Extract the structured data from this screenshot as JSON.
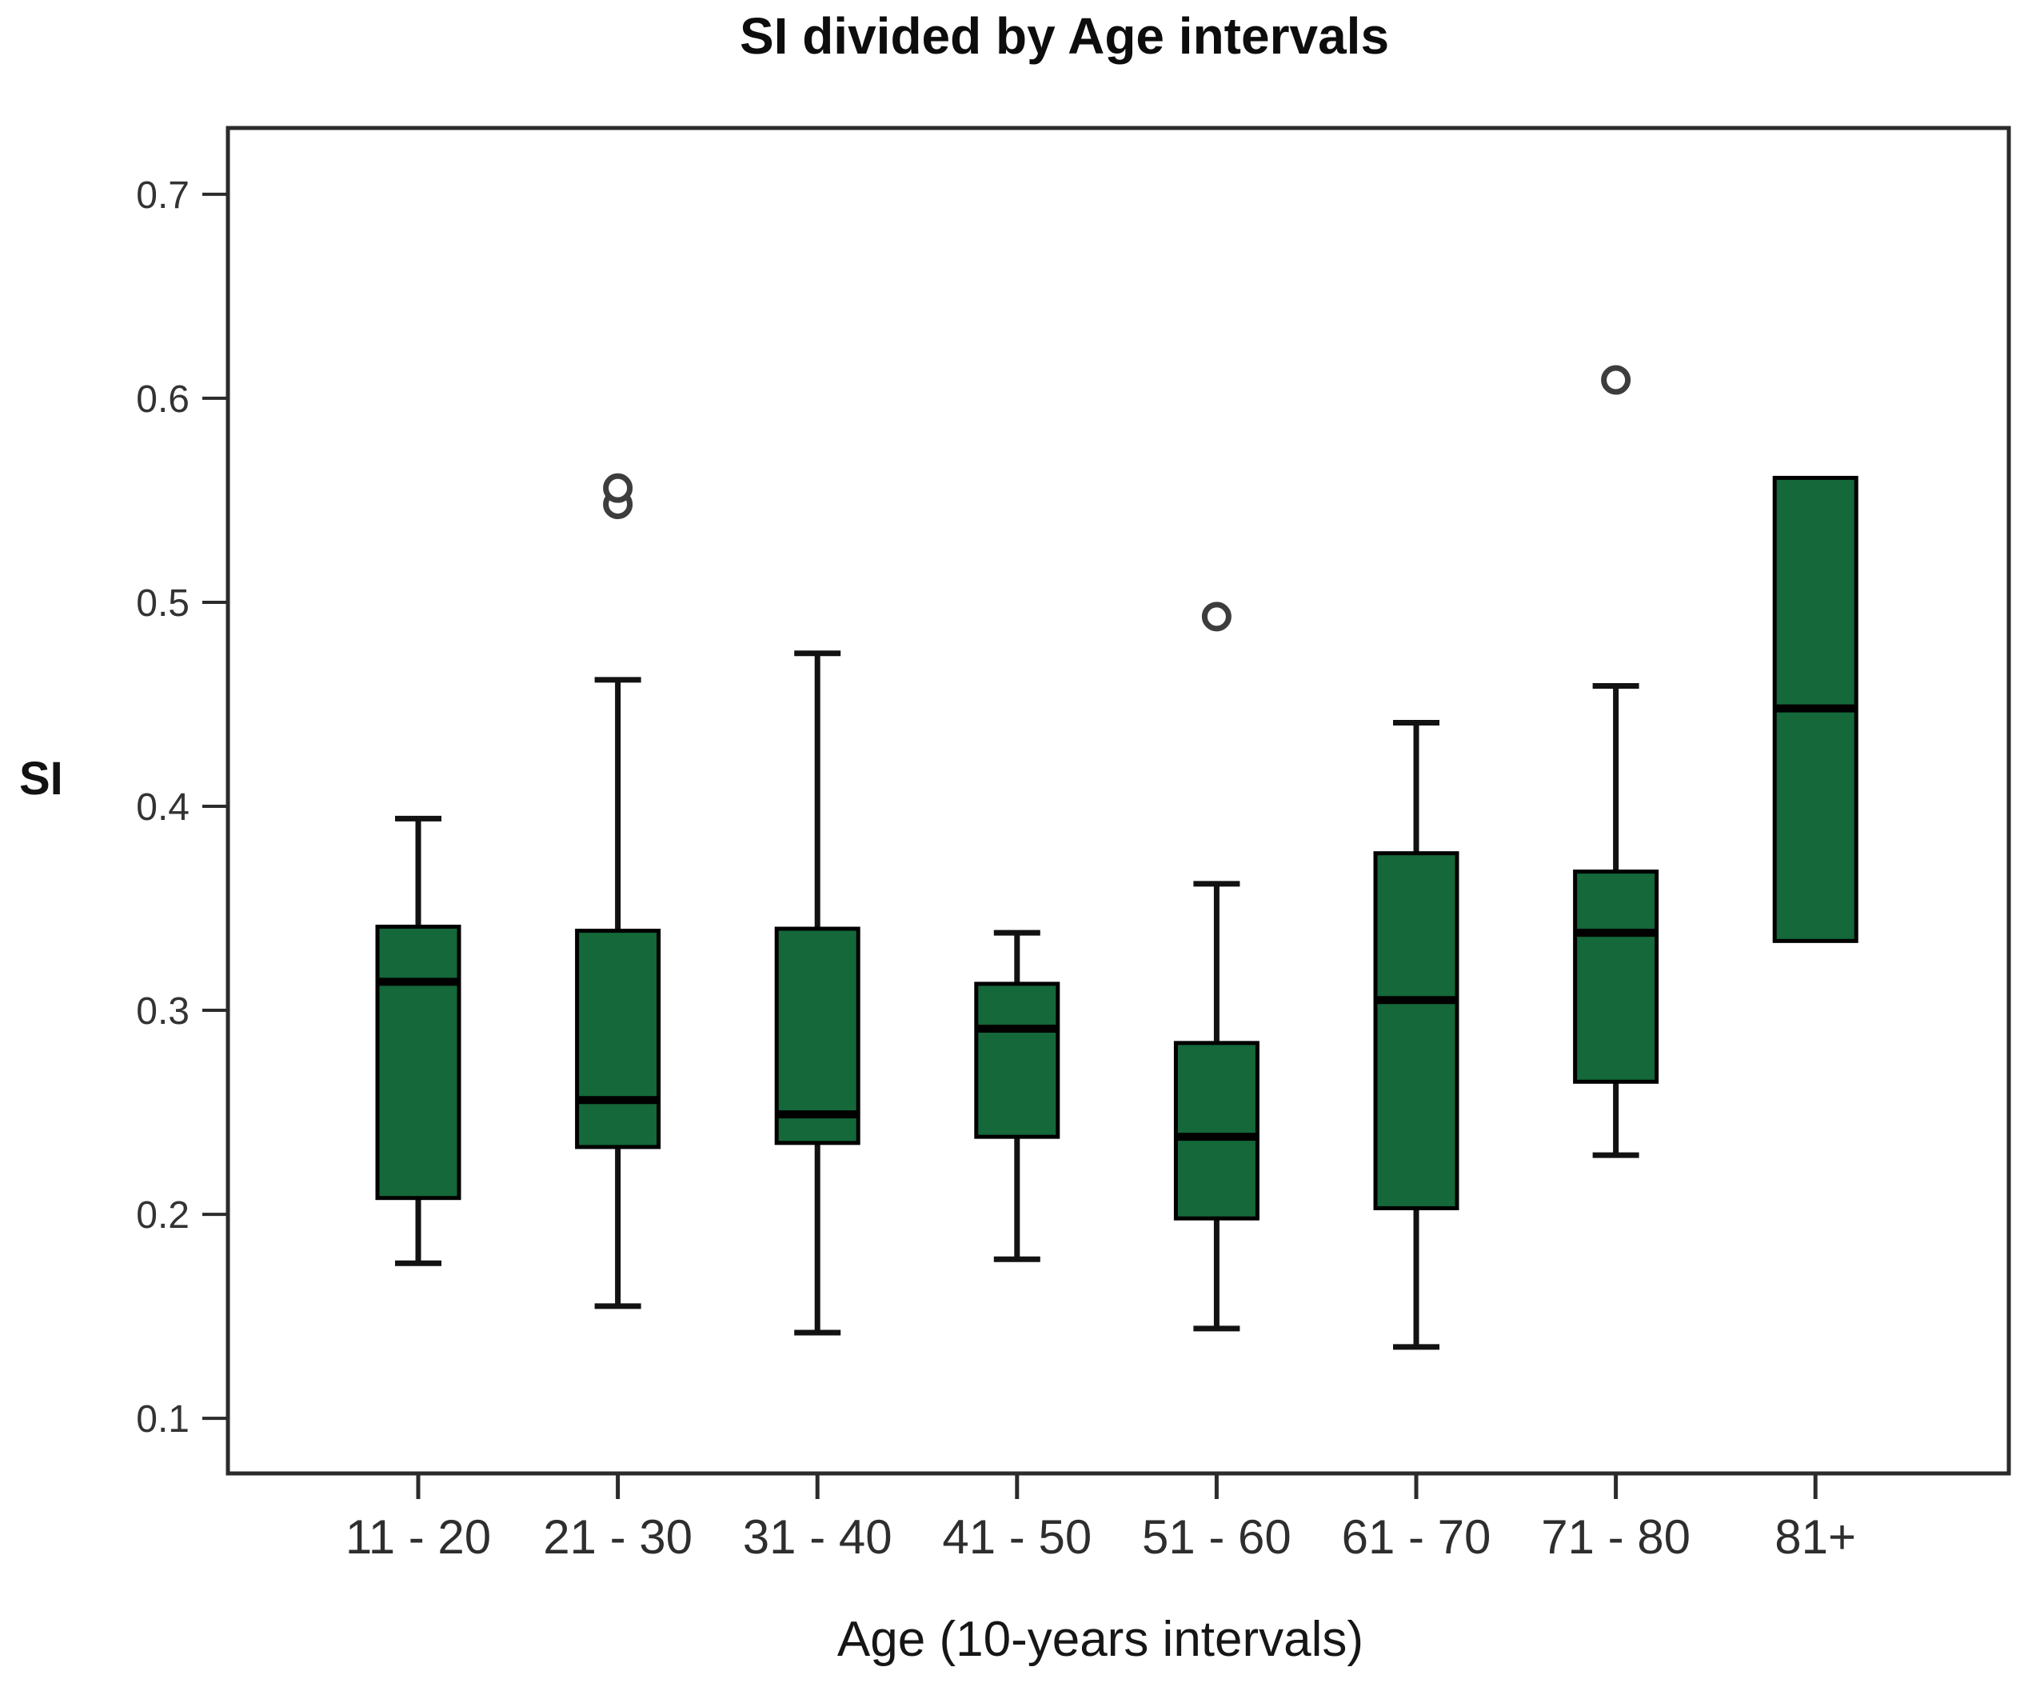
{
  "page": {
    "background": "#ffffff"
  },
  "chart_data": {
    "type": "boxplot",
    "title": "SI divided by Age intervals",
    "xlabel": "Age (10-years intervals)",
    "ylabel": "SI",
    "categories": [
      "11 - 20",
      "21 - 30",
      "31 - 40",
      "41 - 50",
      "51 - 60",
      "61 - 70",
      "71 - 80",
      "81+"
    ],
    "y_ticks": [
      0.7,
      0.6,
      0.5,
      0.4,
      0.3,
      0.2,
      0.1
    ],
    "y_tick_labels": [
      "0.7",
      "0.6",
      "0.5",
      "0.4",
      "0.3",
      "0.2",
      "0.1"
    ],
    "ylim": [
      0.073,
      0.7325
    ],
    "grid": false,
    "legend_position": "none",
    "colors": {
      "box_fill": "#146839",
      "box_border": "#000000",
      "median_line": "#000000",
      "whisker": "#121212",
      "outlier_ring": "#3d3d3d",
      "axis_frame": "#2b2b2b",
      "tick_label": "#333333",
      "category_label": "#2e2e2e"
    },
    "series": [
      {
        "category": "11 - 20",
        "whisker_low": 0.176,
        "q1": 0.208,
        "median": 0.314,
        "q3": 0.341,
        "whisker_high": 0.394,
        "outliers": []
      },
      {
        "category": "21 - 30",
        "whisker_low": 0.155,
        "q1": 0.233,
        "median": 0.256,
        "q3": 0.339,
        "whisker_high": 0.462,
        "outliers": [
          0.548,
          0.556
        ]
      },
      {
        "category": "31 - 40",
        "whisker_low": 0.142,
        "q1": 0.235,
        "median": 0.249,
        "q3": 0.34,
        "whisker_high": 0.475,
        "outliers": []
      },
      {
        "category": "41 - 50",
        "whisker_low": 0.178,
        "q1": 0.238,
        "median": 0.291,
        "q3": 0.313,
        "whisker_high": 0.338,
        "outliers": []
      },
      {
        "category": "51 - 60",
        "whisker_low": 0.144,
        "q1": 0.198,
        "median": 0.238,
        "q3": 0.284,
        "whisker_high": 0.362,
        "outliers": [
          0.493
        ]
      },
      {
        "category": "61 - 70",
        "whisker_low": 0.135,
        "q1": 0.203,
        "median": 0.305,
        "q3": 0.377,
        "whisker_high": 0.441,
        "outliers": []
      },
      {
        "category": "71 - 80",
        "whisker_low": 0.229,
        "q1": 0.265,
        "median": 0.338,
        "q3": 0.368,
        "whisker_high": 0.459,
        "outliers": [
          0.609
        ]
      },
      {
        "category": "81+",
        "whisker_low": null,
        "q1": 0.334,
        "median": 0.448,
        "q3": 0.561,
        "whisker_high": null,
        "outliers": []
      }
    ]
  }
}
